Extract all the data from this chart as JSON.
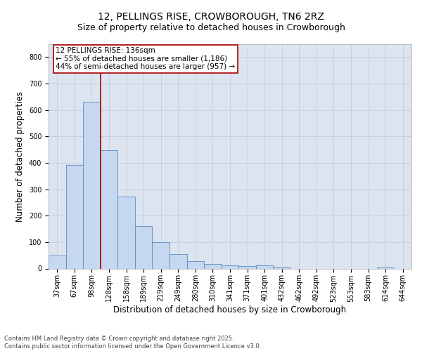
{
  "title": "12, PELLINGS RISE, CROWBOROUGH, TN6 2RZ",
  "subtitle": "Size of property relative to detached houses in Crowborough",
  "xlabel": "Distribution of detached houses by size in Crowborough",
  "ylabel": "Number of detached properties",
  "categories": [
    "37sqm",
    "67sqm",
    "98sqm",
    "128sqm",
    "158sqm",
    "189sqm",
    "219sqm",
    "249sqm",
    "280sqm",
    "310sqm",
    "341sqm",
    "371sqm",
    "401sqm",
    "432sqm",
    "462sqm",
    "492sqm",
    "523sqm",
    "553sqm",
    "583sqm",
    "614sqm",
    "644sqm"
  ],
  "values": [
    50,
    393,
    632,
    447,
    272,
    160,
    100,
    55,
    28,
    17,
    13,
    10,
    13,
    5,
    0,
    0,
    0,
    0,
    0,
    5,
    0
  ],
  "bar_color": "#c5d8ef",
  "bar_edge_color": "#5b8ac5",
  "bar_width": 1.0,
  "vline_x_index": 2.5,
  "vline_color": "#aa0000",
  "annotation_text": "12 PELLINGS RISE: 136sqm\n← 55% of detached houses are smaller (1,186)\n44% of semi-detached houses are larger (957) →",
  "annotation_box_facecolor": "#ffffff",
  "annotation_box_edgecolor": "#aa0000",
  "grid_color": "#c8cfe0",
  "background_color": "#dce4f0",
  "ylim": [
    0,
    850
  ],
  "yticks": [
    0,
    100,
    200,
    300,
    400,
    500,
    600,
    700,
    800
  ],
  "footer_text": "Contains HM Land Registry data © Crown copyright and database right 2025.\nContains public sector information licensed under the Open Government Licence v3.0.",
  "title_fontsize": 10,
  "subtitle_fontsize": 9,
  "axis_label_fontsize": 8.5,
  "tick_fontsize": 7,
  "annotation_fontsize": 7.5,
  "footer_fontsize": 6
}
